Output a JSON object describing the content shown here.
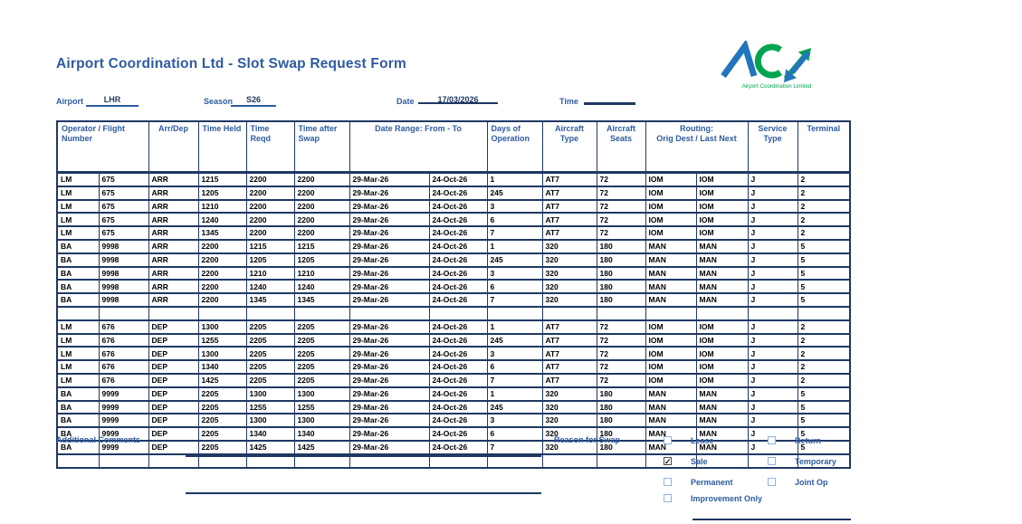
{
  "title": "Airport Coordination Ltd - Slot Swap Request Form",
  "logo": {
    "name": "ACL",
    "subtitle": "Airport Coordination Limited"
  },
  "meta": {
    "airport_label": "Airport",
    "airport_value": "LHR",
    "season_label": "Season",
    "season_value": "S26",
    "date_label": "Date",
    "date_value": "17/03/2026",
    "date_struck_through": true,
    "time_label": "Time",
    "time_value": ""
  },
  "table": {
    "columns": [
      {
        "label": "Operator / Flight\nNumber",
        "span": 2
      },
      {
        "label": "Arr/Dep",
        "span": 1
      },
      {
        "label": "Time Held",
        "span": 1
      },
      {
        "label": "Time Reqd",
        "span": 1
      },
      {
        "label": "Time after\nSwap",
        "span": 1
      },
      {
        "label": "Date Range: From - To",
        "span": 2
      },
      {
        "label": "Days of\nOperation",
        "span": 1
      },
      {
        "label": "Aircraft\nType",
        "span": 1
      },
      {
        "label": "Aircraft\nSeats",
        "span": 1
      },
      {
        "label": "Routing:\nOrig Dest / Last Next",
        "span": 2
      },
      {
        "label": "Service\nType",
        "span": 1
      },
      {
        "label": "Terminal",
        "span": 1
      }
    ],
    "rows": [
      [
        "LM",
        "675",
        "ARR",
        "1215",
        "2200",
        "2200",
        "29-Mar-26",
        "24-Oct-26",
        "1",
        "AT7",
        "72",
        "IOM",
        "IOM",
        "J",
        "2"
      ],
      [
        "LM",
        "675",
        "ARR",
        "1205",
        "2200",
        "2200",
        "29-Mar-26",
        "24-Oct-26",
        "245",
        "AT7",
        "72",
        "IOM",
        "IOM",
        "J",
        "2"
      ],
      [
        "LM",
        "675",
        "ARR",
        "1210",
        "2200",
        "2200",
        "29-Mar-26",
        "24-Oct-26",
        "3",
        "AT7",
        "72",
        "IOM",
        "IOM",
        "J",
        "2"
      ],
      [
        "LM",
        "675",
        "ARR",
        "1240",
        "2200",
        "2200",
        "29-Mar-26",
        "24-Oct-26",
        "6",
        "AT7",
        "72",
        "IOM",
        "IOM",
        "J",
        "2"
      ],
      [
        "LM",
        "675",
        "ARR",
        "1345",
        "2200",
        "2200",
        "29-Mar-26",
        "24-Oct-26",
        "7",
        "AT7",
        "72",
        "IOM",
        "IOM",
        "J",
        "2"
      ],
      [
        "BA",
        "9998",
        "ARR",
        "2200",
        "1215",
        "1215",
        "29-Mar-26",
        "24-Oct-26",
        "1",
        "320",
        "180",
        "MAN",
        "MAN",
        "J",
        "5"
      ],
      [
        "BA",
        "9998",
        "ARR",
        "2200",
        "1205",
        "1205",
        "29-Mar-26",
        "24-Oct-26",
        "245",
        "320",
        "180",
        "MAN",
        "MAN",
        "J",
        "5"
      ],
      [
        "BA",
        "9998",
        "ARR",
        "2200",
        "1210",
        "1210",
        "29-Mar-26",
        "24-Oct-26",
        "3",
        "320",
        "180",
        "MAN",
        "MAN",
        "J",
        "5"
      ],
      [
        "BA",
        "9998",
        "ARR",
        "2200",
        "1240",
        "1240",
        "29-Mar-26",
        "24-Oct-26",
        "6",
        "320",
        "180",
        "MAN",
        "MAN",
        "J",
        "5"
      ],
      [
        "BA",
        "9998",
        "ARR",
        "2200",
        "1345",
        "1345",
        "29-Mar-26",
        "24-Oct-26",
        "7",
        "320",
        "180",
        "MAN",
        "MAN",
        "J",
        "5"
      ],
      [
        "",
        "",
        "",
        "",
        "",
        "",
        "",
        "",
        "",
        "",
        "",
        "",
        "",
        "",
        ""
      ],
      [
        "LM",
        "676",
        "DEP",
        "1300",
        "2205",
        "2205",
        "29-Mar-26",
        "24-Oct-26",
        "1",
        "AT7",
        "72",
        "IOM",
        "IOM",
        "J",
        "2"
      ],
      [
        "LM",
        "676",
        "DEP",
        "1255",
        "2205",
        "2205",
        "29-Mar-26",
        "24-Oct-26",
        "245",
        "AT7",
        "72",
        "IOM",
        "IOM",
        "J",
        "2"
      ],
      [
        "LM",
        "676",
        "DEP",
        "1300",
        "2205",
        "2205",
        "29-Mar-26",
        "24-Oct-26",
        "3",
        "AT7",
        "72",
        "IOM",
        "IOM",
        "J",
        "2"
      ],
      [
        "LM",
        "676",
        "DEP",
        "1340",
        "2205",
        "2205",
        "29-Mar-26",
        "24-Oct-26",
        "6",
        "AT7",
        "72",
        "IOM",
        "IOM",
        "J",
        "2"
      ],
      [
        "LM",
        "676",
        "DEP",
        "1425",
        "2205",
        "2205",
        "29-Mar-26",
        "24-Oct-26",
        "7",
        "AT7",
        "72",
        "IOM",
        "IOM",
        "J",
        "2"
      ],
      [
        "BA",
        "9999",
        "DEP",
        "2205",
        "1300",
        "1300",
        "29-Mar-26",
        "24-Oct-26",
        "1",
        "320",
        "180",
        "MAN",
        "MAN",
        "J",
        "5"
      ],
      [
        "BA",
        "9999",
        "DEP",
        "2205",
        "1255",
        "1255",
        "29-Mar-26",
        "24-Oct-26",
        "245",
        "320",
        "180",
        "MAN",
        "MAN",
        "J",
        "5"
      ],
      [
        "BA",
        "9999",
        "DEP",
        "2205",
        "1300",
        "1300",
        "29-Mar-26",
        "24-Oct-26",
        "3",
        "320",
        "180",
        "MAN",
        "MAN",
        "J",
        "5"
      ],
      [
        "BA",
        "9999",
        "DEP",
        "2205",
        "1340",
        "1340",
        "29-Mar-26",
        "24-Oct-26",
        "6",
        "320",
        "180",
        "MAN",
        "MAN",
        "J",
        "5"
      ],
      [
        "BA",
        "9999",
        "DEP",
        "2205",
        "1425",
        "1425",
        "29-Mar-26",
        "24-Oct-26",
        "7",
        "320",
        "180",
        "MAN",
        "MAN",
        "J",
        "5"
      ],
      [
        "",
        "",
        "",
        "",
        "",
        "",
        "",
        "",
        "",
        "",
        "",
        "",
        "",
        "",
        ""
      ]
    ]
  },
  "comments": {
    "label": "Additional Comments"
  },
  "reason": {
    "label": "Reason for Swap",
    "columns": [
      [
        {
          "label": "Lease",
          "checked": false
        },
        {
          "label": "Sale",
          "checked": true
        },
        {
          "label": "Permanent",
          "checked": false
        },
        {
          "label": "Improvement Only",
          "checked": false
        }
      ],
      [
        {
          "label": "Return",
          "checked": false
        },
        {
          "label": "Temporary",
          "checked": false
        },
        {
          "label": "Joint Op",
          "checked": false
        }
      ]
    ]
  },
  "colors": {
    "brand_blue": "#2E5B9F",
    "border_navy": "#1F3864",
    "logo_green": "#00A44F",
    "logo_blue": "#2175BC",
    "checkbox_border": "#95B3D7",
    "data_text": "#000000"
  }
}
